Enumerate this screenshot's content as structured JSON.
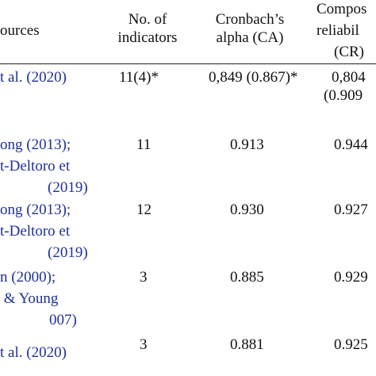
{
  "header": {
    "sources": "ources",
    "indicators": [
      "No. of",
      "indicators"
    ],
    "alpha": [
      "Cronbach’s",
      "alpha (CA)"
    ],
    "composite": [
      "Compos",
      "reliabil",
      "(CR)"
    ]
  },
  "rows": [
    {
      "sources": [
        "t al. (2020)"
      ],
      "indicators": "11(4)*",
      "alpha": "0,849 (0.867)*",
      "composite": [
        "0,804",
        "(0.909"
      ]
    },
    {
      "sources": [
        "ong (2013);",
        "t-Deltoro et",
        "(2019)"
      ],
      "indicators": "11",
      "alpha": "0.913",
      "composite": [
        "0.944"
      ]
    },
    {
      "sources": [
        "ong (2013);",
        "t-Deltoro et",
        "(2019)"
      ],
      "indicators": "12",
      "alpha": "0.930",
      "composite": [
        "0.927"
      ]
    },
    {
      "sources": [
        "n (2000);",
        " & Young",
        "007)"
      ],
      "indicators": "3",
      "alpha": "0.885",
      "composite": [
        "0.929"
      ]
    },
    {
      "sources": [
        "t al. (2020)"
      ],
      "indicators": "3",
      "alpha": "0.881",
      "composite": [
        "0.925"
      ]
    }
  ]
}
